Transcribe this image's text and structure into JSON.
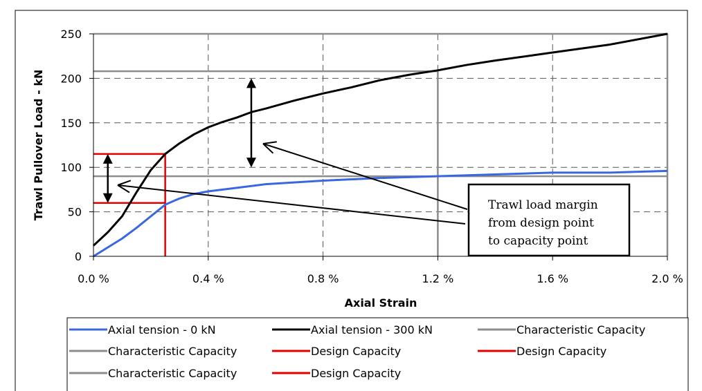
{
  "chart_data": {
    "type": "line",
    "title": "",
    "xlabel": "Axial Strain",
    "ylabel": "Trawl Pullover Load - kN",
    "xlim": [
      0,
      2.0
    ],
    "ylim": [
      0,
      250
    ],
    "grid": true,
    "x_ticks": [
      "0.0 %",
      "0.4 %",
      "0.8 %",
      "1.2 %",
      "1.6 %",
      "2.0 %"
    ],
    "x_tick_values": [
      0,
      0.4,
      0.8,
      1.2,
      1.6,
      2.0
    ],
    "y_ticks": [
      "0",
      "50",
      "100",
      "150",
      "200",
      "250"
    ],
    "y_tick_values": [
      0,
      50,
      100,
      150,
      200,
      250
    ],
    "series": [
      {
        "name": "Axial tension - 0 kN",
        "color": "#3a66e0",
        "x": [
          0,
          0.05,
          0.1,
          0.15,
          0.2,
          0.25,
          0.3,
          0.35,
          0.4,
          0.5,
          0.6,
          0.8,
          1.0,
          1.2,
          1.4,
          1.6,
          1.8,
          2.0
        ],
        "y": [
          0,
          10,
          20,
          32,
          45,
          58,
          65,
          70,
          73,
          77,
          81,
          85,
          88,
          90,
          92,
          94,
          94,
          96
        ]
      },
      {
        "name": "Axial tension - 300 kN",
        "color": "#000000",
        "x": [
          0,
          0.05,
          0.1,
          0.15,
          0.2,
          0.25,
          0.3,
          0.35,
          0.4,
          0.45,
          0.5,
          0.55,
          0.6,
          0.7,
          0.8,
          0.9,
          1.0,
          1.1,
          1.2,
          1.3,
          1.4,
          1.6,
          1.8,
          2.0
        ],
        "y": [
          12,
          27,
          45,
          72,
          97,
          115,
          127,
          137,
          145,
          151,
          156,
          162,
          166,
          175,
          183,
          190,
          198,
          204,
          209,
          215,
          220,
          229,
          238,
          250
        ]
      },
      {
        "name": "Characteristic Capacity",
        "color": "#8c8c8c",
        "x": [
          0,
          1.2,
          1.2
        ],
        "y": [
          208,
          208,
          0
        ]
      },
      {
        "name": "Characteristic Capacity",
        "color": "#8c8c8c",
        "x": [
          0,
          2.0
        ],
        "y": [
          90,
          90
        ]
      },
      {
        "name": "Design Capacity",
        "color": "#e00000",
        "x": [
          0,
          0.25,
          0.25
        ],
        "y": [
          115,
          115,
          0
        ]
      },
      {
        "name": "Design Capacity",
        "color": "#e00000",
        "x": [
          0,
          0.25
        ],
        "y": [
          60,
          60
        ]
      },
      {
        "name": "Characteristic Capacity",
        "color": "#8c8c8c",
        "x": [
          0,
          2.0,
          2.0
        ],
        "y": [
          250,
          250,
          0
        ]
      },
      {
        "name": "Design Capacity",
        "color": "#e00000",
        "x": [],
        "y": []
      }
    ],
    "annotations": {
      "text_lines": [
        "Trawl load margin",
        "from design point",
        "to capacity point"
      ],
      "arrows": [
        {
          "x": 0.05,
          "y_from": 60,
          "y_to": 115
        },
        {
          "x": 0.55,
          "y_from": 100,
          "y_to": 200
        }
      ]
    },
    "legend_position": "bottom"
  }
}
